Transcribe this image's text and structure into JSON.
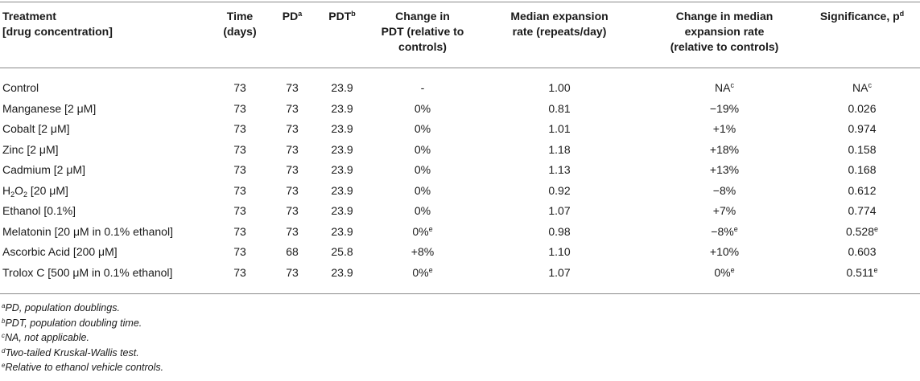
{
  "header": {
    "treatment_l1": "Treatment",
    "treatment_l2": "[drug concentration]",
    "time_l1": "Time",
    "time_l2": "(days)",
    "pd": "PD",
    "pd_sup": "a",
    "pdt": "PDT",
    "pdt_sup": "b",
    "change_pdt_l1": "Change in",
    "change_pdt_l2": "PDT (relative to",
    "change_pdt_l3": "controls)",
    "median_l1": "Median expansion",
    "median_l2": "rate (repeats/day)",
    "change_median_l1": "Change in median",
    "change_median_l2": "expansion rate",
    "change_median_l3": "(relative to controls)",
    "sig": "Significance, p",
    "sig_sup": "d"
  },
  "rows": [
    {
      "pre": "Control",
      "sub": "",
      "post": "",
      "time": "73",
      "pd": "73",
      "pdt": "23.9",
      "change_pdt": "-",
      "change_pdt_sup": "",
      "median": "1.00",
      "change_median": "NA",
      "change_median_sup": "c",
      "sig": "NA",
      "sig_sup": "c"
    },
    {
      "pre": "Manganese [2 μM]",
      "sub": "",
      "post": "",
      "time": "73",
      "pd": "73",
      "pdt": "23.9",
      "change_pdt": "0%",
      "change_pdt_sup": "",
      "median": "0.81",
      "change_median": "−19%",
      "change_median_sup": "",
      "sig": "0.026",
      "sig_sup": ""
    },
    {
      "pre": "Cobalt [2 μM]",
      "sub": "",
      "post": "",
      "time": "73",
      "pd": "73",
      "pdt": "23.9",
      "change_pdt": "0%",
      "change_pdt_sup": "",
      "median": "1.01",
      "change_median": "+1%",
      "change_median_sup": "",
      "sig": "0.974",
      "sig_sup": ""
    },
    {
      "pre": "Zinc [2 μM]",
      "sub": "",
      "post": "",
      "time": "73",
      "pd": "73",
      "pdt": "23.9",
      "change_pdt": "0%",
      "change_pdt_sup": "",
      "median": "1.18",
      "change_median": "+18%",
      "change_median_sup": "",
      "sig": "0.158",
      "sig_sup": ""
    },
    {
      "pre": "Cadmium [2 μM]",
      "sub": "",
      "post": "",
      "time": "73",
      "pd": "73",
      "pdt": "23.9",
      "change_pdt": "0%",
      "change_pdt_sup": "",
      "median": "1.13",
      "change_median": "+13%",
      "change_median_sup": "",
      "sig": "0.168",
      "sig_sup": ""
    },
    {
      "pre": "H",
      "sub": "2",
      "post": "O",
      "sub2": "2",
      "post2": " [20 μM]",
      "time": "73",
      "pd": "73",
      "pdt": "23.9",
      "change_pdt": "0%",
      "change_pdt_sup": "",
      "median": "0.92",
      "change_median": "−8%",
      "change_median_sup": "",
      "sig": "0.612",
      "sig_sup": ""
    },
    {
      "pre": "Ethanol [0.1%]",
      "sub": "",
      "post": "",
      "time": "73",
      "pd": "73",
      "pdt": "23.9",
      "change_pdt": "0%",
      "change_pdt_sup": "",
      "median": "1.07",
      "change_median": "+7%",
      "change_median_sup": "",
      "sig": "0.774",
      "sig_sup": ""
    },
    {
      "pre": "Melatonin [20 μM in 0.1% ethanol]",
      "sub": "",
      "post": "",
      "time": "73",
      "pd": "73",
      "pdt": "23.9",
      "change_pdt": "0%",
      "change_pdt_sup": "e",
      "median": "0.98",
      "change_median": "−8%",
      "change_median_sup": "e",
      "sig": "0.528",
      "sig_sup": "e"
    },
    {
      "pre": "Ascorbic Acid [200 μM]",
      "sub": "",
      "post": "",
      "time": "73",
      "pd": "68",
      "pdt": "25.8",
      "change_pdt": "+8%",
      "change_pdt_sup": "",
      "median": "1.10",
      "change_median": "+10%",
      "change_median_sup": "",
      "sig": "0.603",
      "sig_sup": ""
    },
    {
      "pre": "Trolox C [500 μM in 0.1% ethanol]",
      "sub": "",
      "post": "",
      "time": "73",
      "pd": "73",
      "pdt": "23.9",
      "change_pdt": "0%",
      "change_pdt_sup": "e",
      "median": "1.07",
      "change_median": "0%",
      "change_median_sup": "e",
      "sig": "0.511",
      "sig_sup": "e"
    }
  ],
  "footnotes": [
    {
      "mark": "a",
      "text": "PD, population doublings."
    },
    {
      "mark": "b",
      "text": "PDT, population doubling time."
    },
    {
      "mark": "c",
      "text": "NA, not applicable."
    },
    {
      "mark": "d",
      "text": "Two-tailed Kruskal-Wallis test."
    },
    {
      "mark": "e",
      "text": "Relative to ethanol vehicle controls."
    }
  ]
}
